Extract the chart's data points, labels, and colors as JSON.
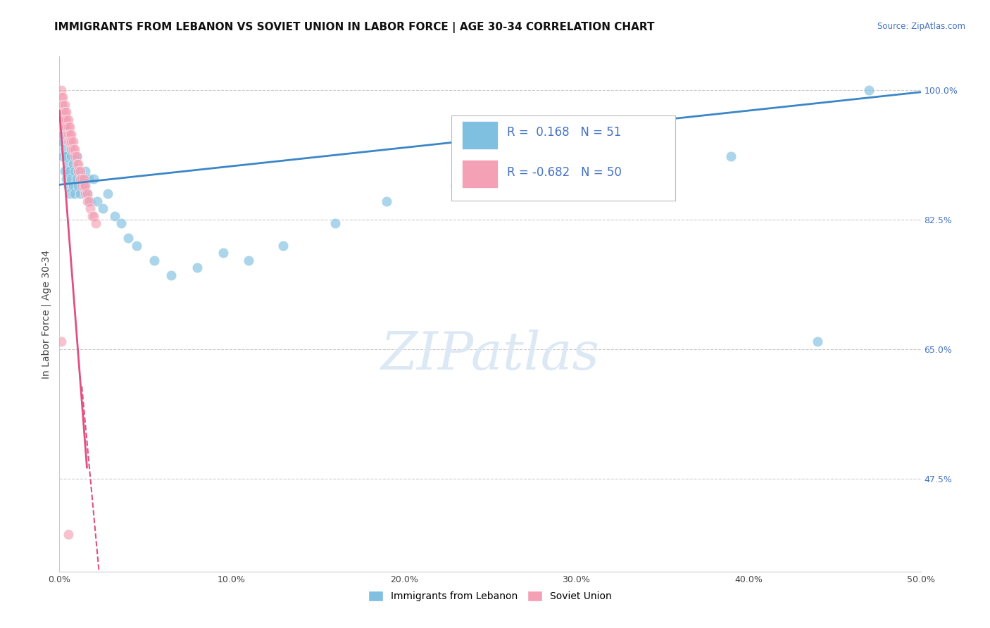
{
  "title": "IMMIGRANTS FROM LEBANON VS SOVIET UNION IN LABOR FORCE | AGE 30-34 CORRELATION CHART",
  "source": "Source: ZipAtlas.com",
  "ylabel": "In Labor Force | Age 30-34",
  "xlim": [
    0.0,
    0.5
  ],
  "ylim": [
    0.35,
    1.045
  ],
  "xticklabels": [
    "0.0%",
    "10.0%",
    "20.0%",
    "30.0%",
    "40.0%",
    "50.0%"
  ],
  "xtick_vals": [
    0.0,
    0.1,
    0.2,
    0.3,
    0.4,
    0.5
  ],
  "yticks_right": [
    0.475,
    0.65,
    0.825,
    1.0
  ],
  "yticklabels_right": [
    "47.5%",
    "65.0%",
    "82.5%",
    "100.0%"
  ],
  "legend_blue_R": "0.168",
  "legend_blue_N": "51",
  "legend_pink_R": "-0.682",
  "legend_pink_N": "50",
  "blue_color": "#7fbfdf",
  "pink_color": "#f4a0b5",
  "trend_blue_color": "#3a86c8",
  "trend_pink_color": "#e05080",
  "blue_trend_x0": 0.0,
  "blue_trend_y0": 0.872,
  "blue_trend_x1": 0.5,
  "blue_trend_y1": 0.997,
  "pink_trend_solid_x0": 0.0,
  "pink_trend_solid_y0": 0.972,
  "pink_trend_solid_x1": 0.016,
  "pink_trend_solid_y1": 0.49,
  "pink_trend_dash_x0": 0.013,
  "pink_trend_dash_y0": 0.6,
  "pink_trend_dash_x1": 0.023,
  "pink_trend_dash_y1": 0.35,
  "lebanon_x": [
    0.001,
    0.001,
    0.002,
    0.002,
    0.003,
    0.003,
    0.003,
    0.004,
    0.004,
    0.005,
    0.005,
    0.006,
    0.006,
    0.007,
    0.007,
    0.008,
    0.008,
    0.009,
    0.009,
    0.01,
    0.01,
    0.011,
    0.012,
    0.013,
    0.014,
    0.015,
    0.016,
    0.017,
    0.018,
    0.02,
    0.022,
    0.025,
    0.028,
    0.032,
    0.036,
    0.04,
    0.045,
    0.055,
    0.065,
    0.08,
    0.095,
    0.11,
    0.13,
    0.16,
    0.19,
    0.23,
    0.28,
    0.33,
    0.39,
    0.44,
    0.47
  ],
  "lebanon_y": [
    0.93,
    0.96,
    0.91,
    0.94,
    0.89,
    0.92,
    0.95,
    0.88,
    0.91,
    0.87,
    0.9,
    0.86,
    0.89,
    0.88,
    0.91,
    0.87,
    0.9,
    0.86,
    0.89,
    0.88,
    0.91,
    0.87,
    0.86,
    0.88,
    0.87,
    0.89,
    0.86,
    0.88,
    0.85,
    0.88,
    0.85,
    0.84,
    0.86,
    0.83,
    0.82,
    0.8,
    0.79,
    0.77,
    0.75,
    0.76,
    0.78,
    0.77,
    0.79,
    0.82,
    0.85,
    0.87,
    0.89,
    0.9,
    0.91,
    0.66,
    1.0
  ],
  "soviet_x": [
    0.001,
    0.001,
    0.001,
    0.002,
    0.002,
    0.002,
    0.002,
    0.003,
    0.003,
    0.003,
    0.003,
    0.004,
    0.004,
    0.004,
    0.004,
    0.005,
    0.005,
    0.005,
    0.005,
    0.006,
    0.006,
    0.006,
    0.007,
    0.007,
    0.007,
    0.008,
    0.008,
    0.009,
    0.009,
    0.01,
    0.01,
    0.011,
    0.011,
    0.012,
    0.012,
    0.013,
    0.013,
    0.014,
    0.014,
    0.015,
    0.015,
    0.016,
    0.016,
    0.017,
    0.018,
    0.019,
    0.02,
    0.021,
    0.001,
    0.005
  ],
  "soviet_y": [
    1.0,
    0.99,
    0.98,
    0.99,
    0.98,
    0.97,
    0.96,
    0.98,
    0.97,
    0.96,
    0.95,
    0.97,
    0.96,
    0.95,
    0.94,
    0.96,
    0.95,
    0.94,
    0.93,
    0.95,
    0.94,
    0.93,
    0.94,
    0.93,
    0.92,
    0.93,
    0.92,
    0.92,
    0.91,
    0.91,
    0.9,
    0.9,
    0.89,
    0.89,
    0.88,
    0.88,
    0.87,
    0.88,
    0.87,
    0.86,
    0.87,
    0.86,
    0.85,
    0.85,
    0.84,
    0.83,
    0.83,
    0.82,
    0.66,
    0.4
  ],
  "grid_color": "#cccccc",
  "bg_color": "#ffffff",
  "title_fontsize": 11,
  "source_text": "Source: ZipAtlas.com"
}
